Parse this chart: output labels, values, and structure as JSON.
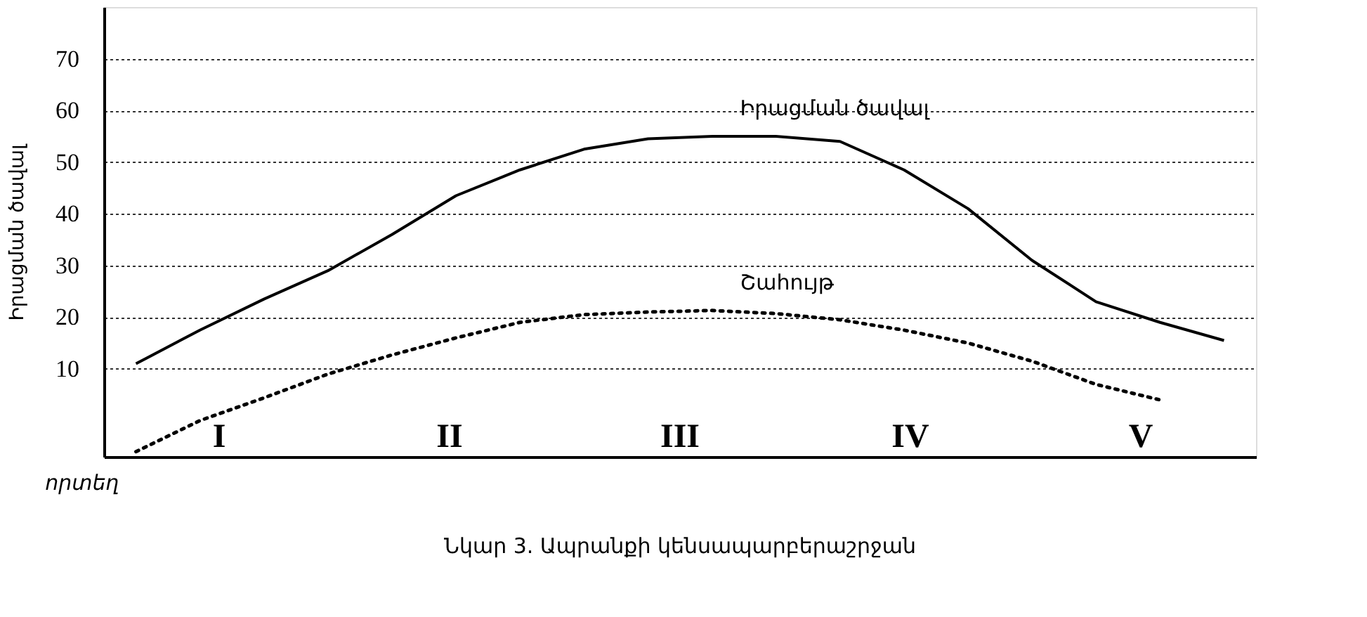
{
  "chart_data": {
    "type": "line",
    "title": "Նկար 3. Ապրանքի կենսապարբերաշրջան",
    "ylabel": "Իրացման ծավալ",
    "categories": [
      null,
      null,
      null,
      null,
      null,
      null,
      null,
      null,
      null,
      null,
      null,
      null,
      null,
      null,
      null,
      null,
      null,
      null
    ],
    "ylim": [
      -7,
      80
    ],
    "yticks": [
      10,
      20,
      30,
      40,
      50,
      60,
      70
    ],
    "tick_labels": "y",
    "grid": "y",
    "legend": false,
    "marker": "none",
    "series": [
      {
        "name": "Իրացման ծավալ",
        "color": "#000000",
        "line_style": "solid",
        "values": [
          11,
          17.5,
          23.5,
          29,
          36,
          43.5,
          48.5,
          52.5,
          54.5,
          55,
          55,
          54,
          48.5,
          41,
          31,
          23,
          19,
          15.5
        ]
      },
      {
        "name": "Շահույթ",
        "color": "#000000",
        "line_style": "dotted",
        "values": [
          -6,
          0,
          4.4,
          9,
          12.7,
          16,
          19,
          20.5,
          21,
          21.3,
          20.7,
          19.5,
          17.5,
          15,
          11.5,
          7,
          4,
          null
        ]
      }
    ],
    "annotations": [
      "I",
      "II",
      "III",
      "IV",
      "V",
      "որտեղ"
    ]
  }
}
